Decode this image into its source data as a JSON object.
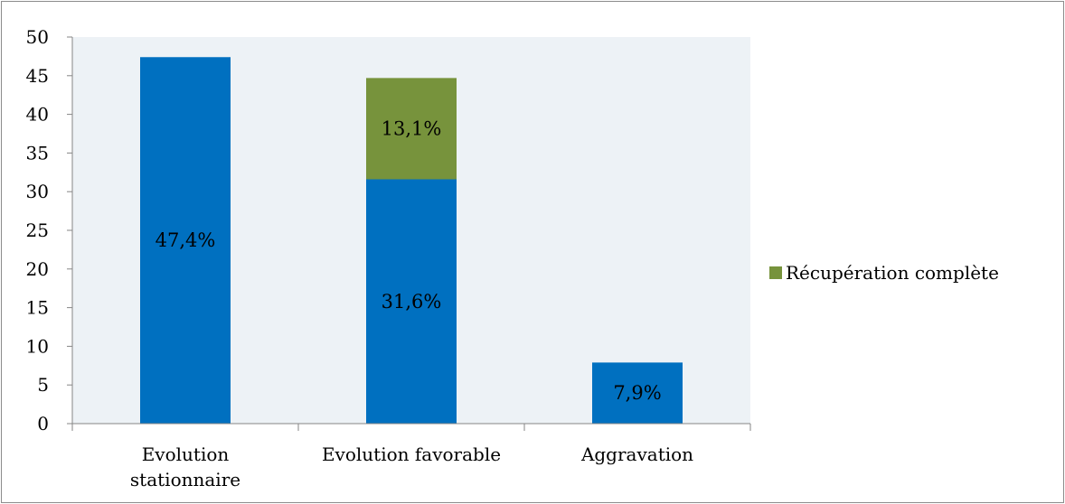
{
  "chart_data": {
    "type": "bar",
    "stacked": true,
    "categories": [
      [
        "Evolution",
        "stationnaire"
      ],
      [
        "Evolution favorable"
      ],
      [
        "Aggravation"
      ]
    ],
    "series": [
      {
        "values": [
          47.4,
          31.6,
          7.9
        ],
        "labels": [
          "47,4%",
          "31,6%",
          "7,9%"
        ],
        "color": "#0070c0"
      },
      {
        "name": "Récupération complète",
        "values": [
          0,
          13.1,
          0
        ],
        "labels": [
          "",
          "13,1%",
          ""
        ],
        "color": "#77933c"
      }
    ],
    "ylim": [
      0,
      50
    ],
    "yticks": [
      0,
      5,
      10,
      15,
      20,
      25,
      30,
      35,
      40,
      45,
      50
    ],
    "plot_background": "#edf2f6",
    "legend": {
      "position": "right",
      "entries": [
        "Récupération complète"
      ]
    },
    "grid": false
  }
}
